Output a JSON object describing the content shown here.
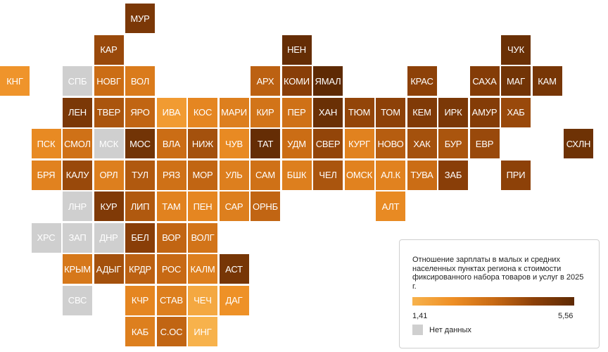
{
  "map": {
    "regions": [
      {
        "code": "МУР",
        "value": 4.9
      },
      {
        "code": "КАР",
        "value": 4.3
      },
      {
        "code": "НЕН",
        "value": 5.4
      },
      {
        "code": "ЧУК",
        "value": 5.3
      },
      {
        "code": "КНГ",
        "value": 2.3
      },
      {
        "code": "СПБ",
        "value": null
      },
      {
        "code": "НОВГ",
        "value": 3.4
      },
      {
        "code": "ВОЛ",
        "value": 3.0
      },
      {
        "code": "АРХ",
        "value": 3.7
      },
      {
        "code": "КОМИ",
        "value": 4.6
      },
      {
        "code": "ЯМАЛ",
        "value": 5.56
      },
      {
        "code": "КРАС",
        "value": 4.5
      },
      {
        "code": "САХА",
        "value": 4.7
      },
      {
        "code": "МАГ",
        "value": 5.1
      },
      {
        "code": "КАМ",
        "value": 5.0
      },
      {
        "code": "ЛЕН",
        "value": 4.9
      },
      {
        "code": "ТВЕР",
        "value": 4.0
      },
      {
        "code": "ЯРО",
        "value": 3.6
      },
      {
        "code": "ИВА",
        "value": 2.1
      },
      {
        "code": "КОС",
        "value": 2.7
      },
      {
        "code": "МАРИ",
        "value": 2.9
      },
      {
        "code": "КИР",
        "value": 3.2
      },
      {
        "code": "ПЕР",
        "value": 3.3
      },
      {
        "code": "ХАН",
        "value": 5.3
      },
      {
        "code": "ТЮМ",
        "value": 4.4
      },
      {
        "code": "ТОМ",
        "value": 4.5
      },
      {
        "code": "КЕМ",
        "value": 4.8
      },
      {
        "code": "ИРК",
        "value": 4.9
      },
      {
        "code": "АМУР",
        "value": 4.7
      },
      {
        "code": "ХАБ",
        "value": 4.3
      },
      {
        "code": "ПСК",
        "value": 2.6
      },
      {
        "code": "СМОЛ",
        "value": 3.3
      },
      {
        "code": "МСК",
        "value": null
      },
      {
        "code": "МОС",
        "value": 5.1
      },
      {
        "code": "ВЛА",
        "value": 3.4
      },
      {
        "code": "НИЖ",
        "value": 4.1
      },
      {
        "code": "ЧУВ",
        "value": 2.6
      },
      {
        "code": "ТАТ",
        "value": 5.4
      },
      {
        "code": "УДМ",
        "value": 3.4
      },
      {
        "code": "СВЕР",
        "value": 4.4
      },
      {
        "code": "КУРГ",
        "value": 2.8
      },
      {
        "code": "НОВО",
        "value": 3.8
      },
      {
        "code": "ХАК",
        "value": 4.1
      },
      {
        "code": "БУР",
        "value": 4.0
      },
      {
        "code": "ЕВР",
        "value": 4.3
      },
      {
        "code": "СХЛН",
        "value": 5.2
      },
      {
        "code": "БРЯ",
        "value": 2.8
      },
      {
        "code": "КАЛУ",
        "value": 4.3
      },
      {
        "code": "ОРЛ",
        "value": 2.9
      },
      {
        "code": "ТУЛ",
        "value": 3.9
      },
      {
        "code": "РЯЗ",
        "value": 3.3
      },
      {
        "code": "МОР",
        "value": 3.6
      },
      {
        "code": "УЛЬ",
        "value": 2.9
      },
      {
        "code": "САМ",
        "value": 3.3
      },
      {
        "code": "БШК",
        "value": 2.9
      },
      {
        "code": "ЧЕЛ",
        "value": 4.0
      },
      {
        "code": "ОМСК",
        "value": 2.8
      },
      {
        "code": "АЛ.К",
        "value": 2.8
      },
      {
        "code": "ТУВА",
        "value": 3.4
      },
      {
        "code": "ЗАБ",
        "value": 4.6
      },
      {
        "code": "ПРИ",
        "value": 4.5
      },
      {
        "code": "ЛНР",
        "value": null
      },
      {
        "code": "КУР",
        "value": 4.8
      },
      {
        "code": "ЛИП",
        "value": 3.9
      },
      {
        "code": "ТАМ",
        "value": 2.8
      },
      {
        "code": "ПЕН",
        "value": 2.7
      },
      {
        "code": "САР",
        "value": 2.9
      },
      {
        "code": "ОРНБ",
        "value": 3.6
      },
      {
        "code": "АЛТ",
        "value": 2.6
      },
      {
        "code": "ХРС",
        "value": null
      },
      {
        "code": "ЗАП",
        "value": null
      },
      {
        "code": "ДНР",
        "value": null
      },
      {
        "code": "БЕЛ",
        "value": 4.6
      },
      {
        "code": "ВОР",
        "value": 3.6
      },
      {
        "code": "ВОЛГ",
        "value": 3.2
      },
      {
        "code": "КРЫМ",
        "value": 3.1
      },
      {
        "code": "АДЫГ",
        "value": 4.1
      },
      {
        "code": "КРДР",
        "value": 3.7
      },
      {
        "code": "РОС",
        "value": 3.5
      },
      {
        "code": "КАЛМ",
        "value": 2.9
      },
      {
        "code": "АСТ",
        "value": 5.0
      },
      {
        "code": "СВС",
        "value": null
      },
      {
        "code": "КЧР",
        "value": 2.7
      },
      {
        "code": "СТАВ",
        "value": 2.9
      },
      {
        "code": "ЧЕЧ",
        "value": 1.7
      },
      {
        "code": "ДАГ",
        "value": 2.4
      },
      {
        "code": "КАБ",
        "value": 2.9
      },
      {
        "code": "С.ОС",
        "value": 3.6
      },
      {
        "code": "ИНГ",
        "value": 1.41
      }
    ]
  },
  "legend": {
    "title": "Отношение зарплаты в малых и средних населенных пунктах региона к стоимости фиксированного набора товаров и услуг в 2025 г.",
    "min_label": "1,41",
    "max_label": "5,56",
    "min": 1.41,
    "max": 5.56,
    "nodata_label": "Нет данных",
    "colors": [
      "#f7b24c",
      "#ee8f25",
      "#c86a14",
      "#8c4008",
      "#5e2a04"
    ],
    "nodata_color": "#cfcfcf"
  }
}
